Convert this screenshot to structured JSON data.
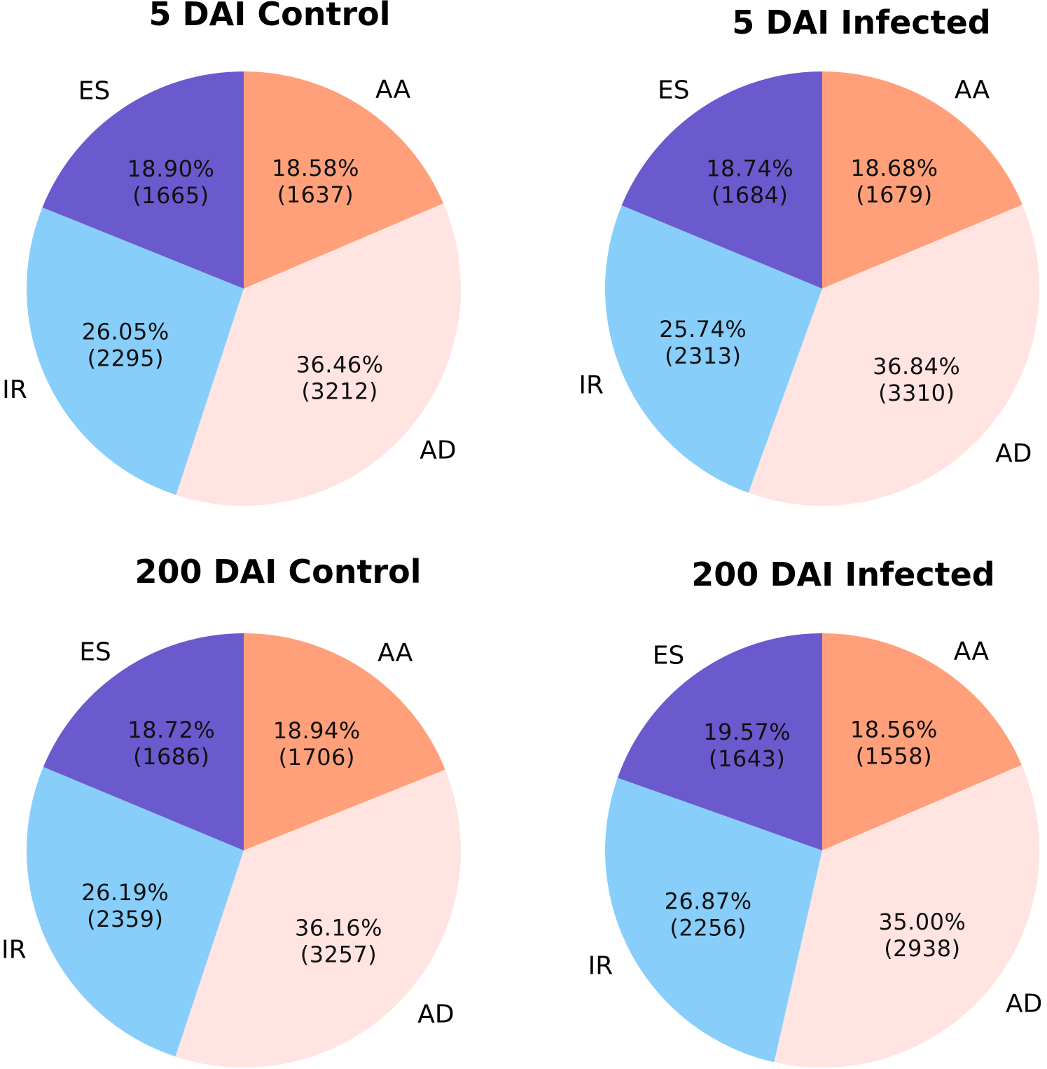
{
  "chart_data": [
    {
      "type": "pie",
      "title": "5 DAI Control",
      "categories": [
        "AA",
        "AD",
        "IR",
        "ES"
      ],
      "percent_labels": [
        "18.58%",
        "36.46%",
        "26.05%",
        "18.90%"
      ],
      "count_labels": [
        "(1637)",
        "(3212)",
        "(2295)",
        "(1665)"
      ],
      "values": [
        1637,
        3212,
        2295,
        1665
      ]
    },
    {
      "type": "pie",
      "title": "5 DAI Infected",
      "categories": [
        "AA",
        "AD",
        "IR",
        "ES"
      ],
      "percent_labels": [
        "18.68%",
        "36.84%",
        "25.74%",
        "18.74%"
      ],
      "count_labels": [
        "(1679)",
        "(3310)",
        "(2313)",
        "(1684)"
      ],
      "values": [
        1679,
        3310,
        2313,
        1684
      ]
    },
    {
      "type": "pie",
      "title": "200 DAI Control",
      "categories": [
        "AA",
        "AD",
        "IR",
        "ES"
      ],
      "percent_labels": [
        "18.94%",
        "36.16%",
        "26.19%",
        "18.72%"
      ],
      "count_labels": [
        "(1706)",
        "(3257)",
        "(2359)",
        "(1686)"
      ],
      "values": [
        1706,
        3257,
        2359,
        1686
      ]
    },
    {
      "type": "pie",
      "title": "200 DAI Infected",
      "categories": [
        "AA",
        "AD",
        "IR",
        "ES"
      ],
      "percent_labels": [
        "18.56%",
        "35.00%",
        "26.87%",
        "19.57%"
      ],
      "count_labels": [
        "(1558)",
        "(2938)",
        "(2256)",
        "(1643)"
      ],
      "values": [
        1558,
        2938,
        2256,
        1643
      ]
    }
  ],
  "colors": {
    "AA": "#FFA07A",
    "AD": "#FFE4E1",
    "IR": "#87CEFA",
    "ES": "#6A5ACD"
  }
}
